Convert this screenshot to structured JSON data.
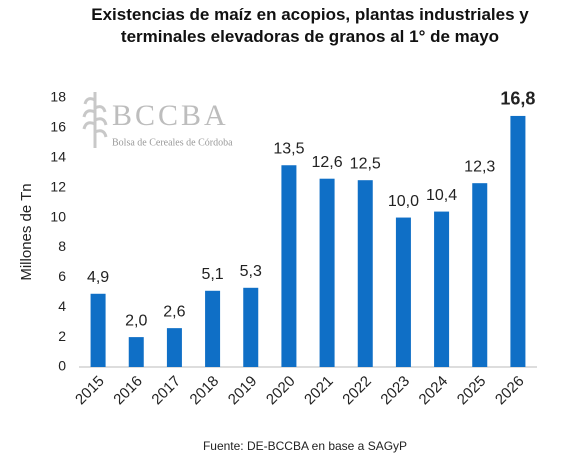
{
  "chart_data": {
    "type": "bar",
    "title": "Existencias de maíz en acopios, plantas industriales y terminales elevadoras de granos al 1° de mayo",
    "y_label": "Millones de Tn",
    "source": "Fuente: DE-BCCBA en base a SAGyP",
    "watermark": {
      "name": "BCCBA",
      "subtitle": "Bolsa de Cereales de Córdoba"
    },
    "categories": [
      "2015",
      "2016",
      "2017",
      "2018",
      "2019",
      "2020",
      "2021",
      "2022",
      "2023",
      "2024",
      "2025",
      "2026"
    ],
    "values": [
      4.9,
      2.0,
      2.6,
      5.1,
      5.3,
      13.5,
      12.6,
      12.5,
      10.0,
      10.4,
      12.3,
      16.8
    ],
    "value_labels": [
      "4,9",
      "2,0",
      "2,6",
      "5,1",
      "5,3",
      "13,5",
      "12,6",
      "12,5",
      "10,0",
      "10,4",
      "12,3",
      "16,8"
    ],
    "color": "#0f6fc6",
    "ylim": [
      0,
      18
    ],
    "yticks": [
      0,
      2,
      4,
      6,
      8,
      10,
      12,
      14,
      16,
      18
    ],
    "grid": false
  }
}
